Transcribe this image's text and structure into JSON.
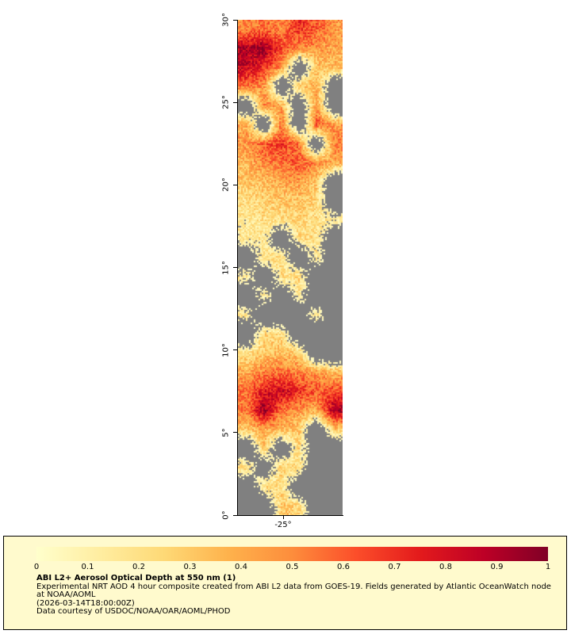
{
  "map": {
    "no_data_color": "#808080",
    "axis_color": "#000000",
    "lat_ticks": [
      "30°",
      "25°",
      "20°",
      "15°",
      "10°",
      "5°",
      "0°"
    ],
    "lon_ticks": [
      "-25°"
    ]
  },
  "colorbar": {
    "ticks": [
      "0",
      "0.1",
      "0.2",
      "0.3",
      "0.4",
      "0.5",
      "0.6",
      "0.7",
      "0.8",
      "0.9",
      "1"
    ],
    "box_background": "#fffacd"
  },
  "caption": {
    "title": "ABI L2+ Aerosol Optical Depth at 550 nm (1)",
    "description": "Experimental NRT AOD 4 hour composite created from ABI L2 data from GOES-19. Fields generated by Atlantic OceanWatch node at NOAA/AOML",
    "timestamp": "(2026-03-14T18:00:00Z)",
    "credit": "Data courtesy of USDOC/NOAA/OAR/AOML/PHOD"
  },
  "chart_data": {
    "type": "heatmap",
    "title": "ABI L2+ Aerosol Optical Depth at 550 nm (1)",
    "value_label": "Aerosol Optical Depth at 550 nm",
    "value_range": [
      0,
      1
    ],
    "lat_range": [
      0,
      30
    ],
    "lat_tick_labels": [
      "30°",
      "25°",
      "20°",
      "15°",
      "10°",
      "5°",
      "0°"
    ],
    "lon_tick_labels": [
      "-25°"
    ],
    "no_data_color": "#808080",
    "colormap": "YlOrRd",
    "colormap_stops": [
      {
        "p": 0.0,
        "c": "#ffffcc"
      },
      {
        "p": 0.125,
        "c": "#ffeda0"
      },
      {
        "p": 0.25,
        "c": "#fed976"
      },
      {
        "p": 0.375,
        "c": "#feb24c"
      },
      {
        "p": 0.5,
        "c": "#fd8d3c"
      },
      {
        "p": 0.625,
        "c": "#fc4e2a"
      },
      {
        "p": 0.75,
        "c": "#e31a1c"
      },
      {
        "p": 0.875,
        "c": "#bd0026"
      },
      {
        "p": 1.0,
        "c": "#800026"
      }
    ],
    "grid_orientation": "rows top (30N) to bottom (0N), 6 columns west to east, null = no data",
    "grid": [
      [
        0.5,
        0.55,
        0.5,
        0.7,
        0.6,
        0.45
      ],
      [
        0.9,
        0.95,
        0.65,
        0.5,
        0.45,
        0.4
      ],
      [
        0.85,
        0.7,
        0.45,
        null,
        0.3,
        0.35
      ],
      [
        0.55,
        0.45,
        null,
        0.3,
        0.4,
        null
      ],
      [
        null,
        0.5,
        0.4,
        null,
        0.45,
        null
      ],
      [
        0.4,
        null,
        0.55,
        null,
        0.6,
        0.45
      ],
      [
        0.45,
        0.6,
        0.7,
        0.55,
        null,
        0.5
      ],
      [
        0.35,
        0.5,
        0.55,
        0.6,
        0.5,
        0.4
      ],
      [
        0.3,
        0.35,
        0.4,
        0.45,
        0.3,
        null
      ],
      [
        0.2,
        0.25,
        0.3,
        0.3,
        0.25,
        null
      ],
      [
        0.15,
        0.2,
        0.2,
        0.25,
        0.2,
        0.15
      ],
      [
        0.15,
        0.15,
        null,
        0.2,
        0.2,
        null
      ],
      [
        null,
        0.2,
        0.25,
        null,
        0.15,
        null
      ],
      [
        0.15,
        null,
        0.2,
        0.25,
        null,
        null
      ],
      [
        null,
        0.2,
        null,
        0.15,
        null,
        null
      ],
      [
        0.15,
        null,
        null,
        null,
        0.2,
        null
      ],
      [
        null,
        0.25,
        0.2,
        null,
        null,
        null
      ],
      [
        0.2,
        0.3,
        0.35,
        0.3,
        null,
        null
      ],
      [
        0.4,
        0.5,
        0.55,
        0.5,
        0.45,
        0.35
      ],
      [
        0.55,
        0.75,
        0.85,
        0.7,
        0.6,
        0.65
      ],
      [
        0.5,
        0.95,
        0.55,
        0.45,
        0.4,
        0.9
      ],
      [
        0.3,
        0.4,
        0.35,
        0.3,
        null,
        0.3
      ],
      [
        null,
        0.3,
        null,
        0.25,
        null,
        null
      ],
      [
        0.25,
        null,
        0.3,
        0.2,
        null,
        null
      ],
      [
        null,
        0.25,
        0.2,
        null,
        null,
        null
      ],
      [
        null,
        null,
        0.3,
        0.25,
        null,
        null
      ]
    ]
  }
}
